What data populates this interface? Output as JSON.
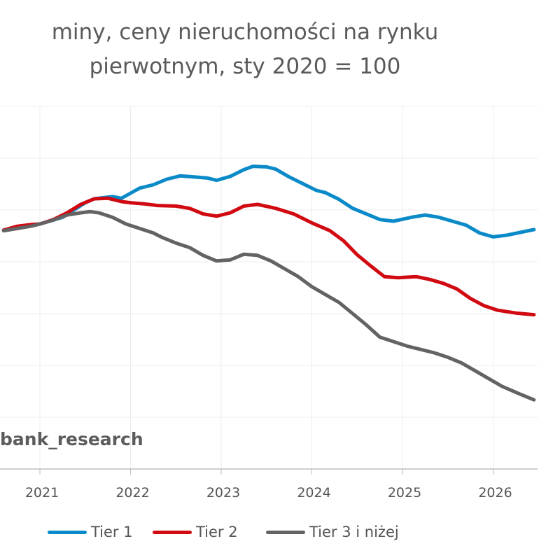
{
  "title_line1": "miny, ceny nieruchomości na rynku",
  "title_line2": "pierwotnym, sty 2020 = 100",
  "watermark": "bank_research",
  "chart_data": {
    "type": "line",
    "title": "miny, ceny nieruchomości na rynku pierwotnym, sty 2020 = 100",
    "xlabel": "",
    "ylabel": "",
    "x_ticks": [
      "2021",
      "2022",
      "2023",
      "2024",
      "2025",
      "2026"
    ],
    "x_range": [
      2020.6,
      2026.5
    ],
    "grid": true,
    "legend_position": "bottom",
    "series": [
      {
        "name": "Tier 1",
        "color": "#0a8ac8",
        "points": [
          [
            2020.6,
            -11
          ],
          [
            2020.75,
            -5
          ],
          [
            2020.9,
            -2
          ],
          [
            2021.0,
            0
          ],
          [
            2021.25,
            12
          ],
          [
            2021.5,
            38
          ],
          [
            2021.6,
            45
          ],
          [
            2021.7,
            47
          ],
          [
            2021.8,
            49
          ],
          [
            2021.9,
            46
          ],
          [
            2022.0,
            55
          ],
          [
            2022.1,
            64
          ],
          [
            2022.25,
            70
          ],
          [
            2022.4,
            80
          ],
          [
            2022.55,
            86
          ],
          [
            2022.7,
            84
          ],
          [
            2022.85,
            82
          ],
          [
            2022.95,
            78
          ],
          [
            2023.1,
            85
          ],
          [
            2023.25,
            97
          ],
          [
            2023.35,
            103
          ],
          [
            2023.5,
            102
          ],
          [
            2023.6,
            98
          ],
          [
            2023.75,
            84
          ],
          [
            2023.9,
            72
          ],
          [
            2024.05,
            60
          ],
          [
            2024.15,
            56
          ],
          [
            2024.3,
            44
          ],
          [
            2024.45,
            28
          ],
          [
            2024.6,
            18
          ],
          [
            2024.75,
            8
          ],
          [
            2024.9,
            5
          ],
          [
            2025.1,
            12
          ],
          [
            2025.25,
            16
          ],
          [
            2025.4,
            12
          ],
          [
            2025.55,
            5
          ],
          [
            2025.7,
            -2
          ],
          [
            2025.85,
            -16
          ],
          [
            2026.0,
            -23
          ],
          [
            2026.15,
            -20
          ],
          [
            2026.3,
            -15
          ],
          [
            2026.45,
            -10
          ]
        ]
      },
      {
        "name": "Tier 2",
        "color": "#d10a12",
        "points": [
          [
            2020.6,
            -11
          ],
          [
            2020.75,
            -4
          ],
          [
            2020.9,
            -1
          ],
          [
            2021.0,
            0
          ],
          [
            2021.15,
            8
          ],
          [
            2021.3,
            20
          ],
          [
            2021.45,
            35
          ],
          [
            2021.6,
            45
          ],
          [
            2021.75,
            46
          ],
          [
            2021.9,
            40
          ],
          [
            2022.0,
            38
          ],
          [
            2022.15,
            36
          ],
          [
            2022.3,
            33
          ],
          [
            2022.5,
            32
          ],
          [
            2022.65,
            28
          ],
          [
            2022.8,
            18
          ],
          [
            2022.95,
            14
          ],
          [
            2023.1,
            20
          ],
          [
            2023.25,
            32
          ],
          [
            2023.4,
            35
          ],
          [
            2023.6,
            28
          ],
          [
            2023.8,
            18
          ],
          [
            2024.0,
            2
          ],
          [
            2024.2,
            -12
          ],
          [
            2024.35,
            -30
          ],
          [
            2024.5,
            -55
          ],
          [
            2024.65,
            -75
          ],
          [
            2024.8,
            -94
          ],
          [
            2024.95,
            -96
          ],
          [
            2025.15,
            -94
          ],
          [
            2025.3,
            -99
          ],
          [
            2025.45,
            -106
          ],
          [
            2025.6,
            -116
          ],
          [
            2025.75,
            -133
          ],
          [
            2025.9,
            -146
          ],
          [
            2026.05,
            -154
          ],
          [
            2026.25,
            -159
          ],
          [
            2026.45,
            -162
          ]
        ]
      },
      {
        "name": "Tier 3 i niżej",
        "color": "#636363",
        "points": [
          [
            2020.6,
            -12
          ],
          [
            2020.75,
            -8
          ],
          [
            2020.9,
            -4
          ],
          [
            2021.0,
            0
          ],
          [
            2021.15,
            7
          ],
          [
            2021.3,
            16
          ],
          [
            2021.45,
            20
          ],
          [
            2021.55,
            22
          ],
          [
            2021.65,
            20
          ],
          [
            2021.8,
            12
          ],
          [
            2021.95,
            0
          ],
          [
            2022.1,
            -8
          ],
          [
            2022.25,
            -16
          ],
          [
            2022.35,
            -24
          ],
          [
            2022.5,
            -34
          ],
          [
            2022.65,
            -42
          ],
          [
            2022.8,
            -56
          ],
          [
            2022.95,
            -66
          ],
          [
            2023.1,
            -64
          ],
          [
            2023.25,
            -54
          ],
          [
            2023.4,
            -56
          ],
          [
            2023.55,
            -66
          ],
          [
            2023.7,
            -80
          ],
          [
            2023.85,
            -94
          ],
          [
            2024.0,
            -112
          ],
          [
            2024.15,
            -126
          ],
          [
            2024.3,
            -140
          ],
          [
            2024.45,
            -160
          ],
          [
            2024.6,
            -180
          ],
          [
            2024.75,
            -202
          ],
          [
            2024.9,
            -210
          ],
          [
            2025.05,
            -218
          ],
          [
            2025.2,
            -224
          ],
          [
            2025.35,
            -230
          ],
          [
            2025.5,
            -238
          ],
          [
            2025.65,
            -248
          ],
          [
            2025.8,
            -262
          ],
          [
            2025.95,
            -276
          ],
          [
            2026.1,
            -290
          ],
          [
            2026.3,
            -304
          ],
          [
            2026.45,
            -314
          ]
        ]
      }
    ]
  }
}
